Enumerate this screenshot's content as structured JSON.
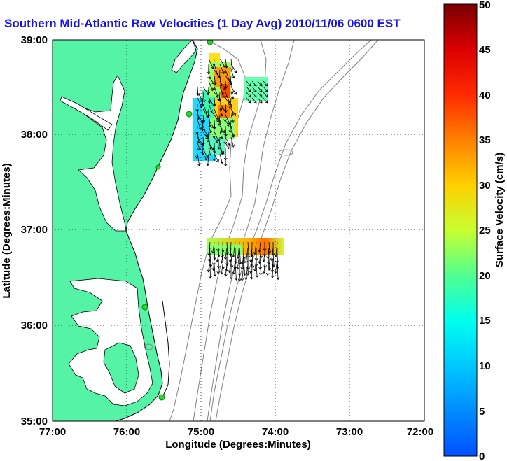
{
  "title": "Southern Mid-Atlantic Raw Velocities (1 Day Avg) 2010/11/06 0600 EST",
  "xlabel": "Longitude (Degrees:Minutes)",
  "ylabel": "Latitude (Degrees:Minutes)",
  "colorbar_label": "Surface Velocity (cm/s)",
  "x_ticks": [
    "77:00",
    "76:00",
    "75:00",
    "74:00",
    "73:00",
    "72:00"
  ],
  "y_ticks": [
    "39:00",
    "38:00",
    "37:00",
    "36:00",
    "35:00"
  ],
  "colorbar_ticks": [
    "0",
    "5",
    "10",
    "15",
    "20",
    "25",
    "30",
    "35",
    "40",
    "45",
    "50"
  ],
  "colors": {
    "land": "#55f3a6",
    "coast": "#000000",
    "bathymetry": "#808080",
    "title": "#1414e6",
    "station": "#22dd22"
  },
  "chart_data": {
    "type": "map",
    "title": "Southern Mid-Atlantic Raw Velocities (1 Day Avg) 2010/11/06 0600 EST",
    "xlabel": "Longitude (Degrees:Minutes)",
    "ylabel": "Latitude (Degrees:Minutes)",
    "xlim": [
      -77.0,
      -72.0
    ],
    "ylim": [
      35.0,
      39.0
    ],
    "grid": "dotted",
    "colorbar": {
      "label": "Surface Velocity (cm/s)",
      "range": [
        0,
        50
      ],
      "colormap": "jet"
    },
    "stations": [
      {
        "lon": -75.13,
        "lat": 38.98
      },
      {
        "lon": -75.18,
        "lat": 38.22
      },
      {
        "lon": -75.55,
        "lat": 37.65
      },
      {
        "lon": -75.78,
        "lat": 36.18
      },
      {
        "lon": -75.47,
        "lat": 35.25
      }
    ]
  }
}
